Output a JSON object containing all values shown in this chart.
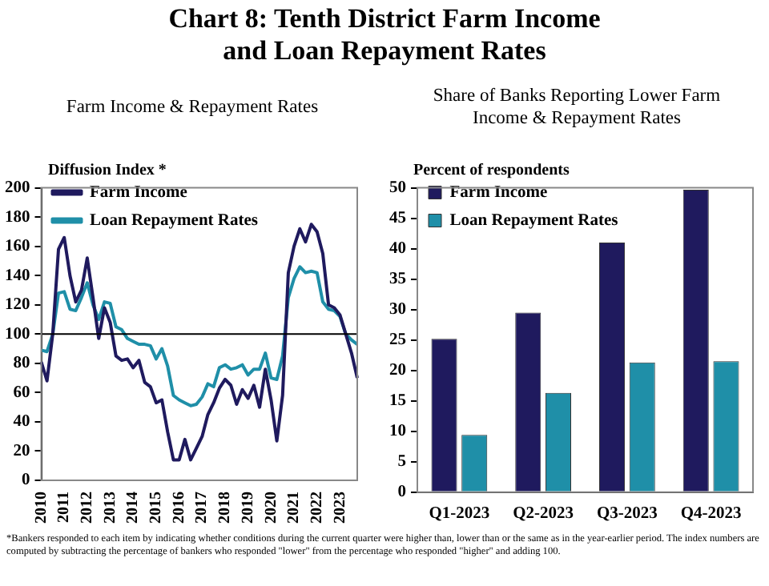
{
  "chart_data": [
    {
      "type": "line",
      "title": "Chart 8: Tenth District Farm Income and Loan Repayment Rates",
      "subtitle": "Farm Income & Repayment Rates",
      "ylabel": "Diffusion  Index *",
      "categories": [
        "2010",
        null,
        null,
        null,
        "2011",
        null,
        null,
        null,
        "2012",
        null,
        null,
        null,
        "2013",
        null,
        null,
        null,
        "2014",
        null,
        null,
        null,
        "2015",
        null,
        null,
        null,
        "2016",
        null,
        null,
        null,
        "2017",
        null,
        null,
        null,
        "2018",
        null,
        null,
        null,
        "2019",
        null,
        null,
        null,
        "2020",
        null,
        null,
        null,
        "2021",
        null,
        null,
        null,
        "2022",
        null,
        null,
        null,
        "2023",
        null,
        null,
        null
      ],
      "series": [
        {
          "name": "Farm Income",
          "color": "#1f1a5e",
          "values": [
            81,
            68,
            100,
            158,
            166,
            140,
            122,
            130,
            152,
            125,
            97,
            118,
            108,
            85,
            82,
            83,
            77,
            82,
            67,
            64,
            53,
            55,
            33,
            14,
            14,
            28,
            14,
            22,
            30,
            45,
            53,
            63,
            69,
            65,
            52,
            62,
            56,
            65,
            50,
            76,
            55,
            27,
            58,
            142,
            160,
            172,
            163,
            175,
            170,
            155,
            120,
            118,
            113,
            100,
            87,
            70
          ]
        },
        {
          "name": "Loan Repayment Rates",
          "color": "#1f8fa8",
          "values": [
            89,
            88,
            100,
            128,
            129,
            117,
            116,
            125,
            135,
            120,
            110,
            122,
            121,
            105,
            103,
            97,
            95,
            93,
            93,
            92,
            83,
            90,
            78,
            58,
            55,
            53,
            51,
            52,
            57,
            66,
            64,
            77,
            79,
            76,
            77,
            79,
            72,
            76,
            76,
            87,
            70,
            69,
            85,
            125,
            138,
            146,
            142,
            143,
            142,
            122,
            117,
            116,
            112,
            100,
            96,
            93
          ]
        }
      ],
      "ylim": [
        0,
        200
      ],
      "yticks": [
        0,
        20,
        40,
        60,
        80,
        100,
        120,
        140,
        160,
        180,
        200
      ],
      "grid": false,
      "legend": "top left",
      "marker": "none",
      "line_style": "solid",
      "ref_lines": [
        {
          "axis": "y",
          "value": 100,
          "color": "#000000"
        }
      ],
      "annotations": [
        "*Bankers responded to each item by indicating  whether conditions during the current quarter were higher than,  lower than or the same as in the year-earlier period. The index numbers are computed by subtracting the percentage of bankers who responded \"lower\" from the percentage who responded \"higher\" and adding 100."
      ]
    },
    {
      "type": "bar",
      "subtitle": "Share of Banks Reporting Lower Farm Income & Repayment Rates",
      "ylabel": "Percent of respondents",
      "categories": [
        "Q1-2023",
        "Q2-2023",
        "Q3-2023",
        "Q4-2023"
      ],
      "series": [
        {
          "name": "Farm Income",
          "color": "#1f1a5e",
          "values": [
            25.2,
            29.5,
            41,
            49.7
          ]
        },
        {
          "name": "Loan Repayment Rates",
          "color": "#1f8fa8",
          "values": [
            9.4,
            16.3,
            21.3,
            21.5
          ]
        }
      ],
      "ylim": [
        0,
        50
      ],
      "yticks": [
        0,
        5,
        10,
        15,
        20,
        25,
        30,
        35,
        40,
        45,
        50
      ],
      "grid": false,
      "legend": "top left"
    }
  ]
}
